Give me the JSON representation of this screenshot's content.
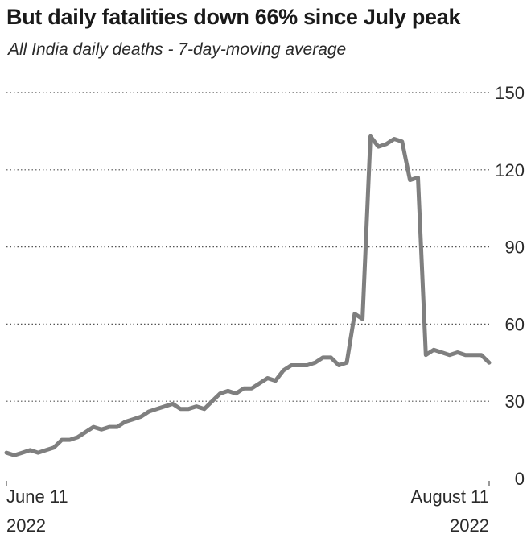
{
  "title": "But daily fatalities down 66% since July peak",
  "subtitle": "All India daily deaths - 7-day-moving average",
  "chart_data": {
    "type": "line",
    "title": "But daily fatalities down 66% since July peak",
    "subtitle": "All India daily deaths - 7-day-moving average",
    "xlabel": "",
    "ylabel": "",
    "ylim": [
      0,
      150
    ],
    "yticks": [
      0,
      30,
      60,
      90,
      120,
      150
    ],
    "grid": true,
    "x_tick_labels": [
      {
        "line1": "June 11",
        "line2": "2022"
      },
      {
        "line1": "August 11",
        "line2": "2022"
      }
    ],
    "series_color": "#7f7f7f",
    "series": [
      {
        "x": [
          "2022-06-11",
          "2022-06-12",
          "2022-06-13",
          "2022-06-14",
          "2022-06-15",
          "2022-06-16",
          "2022-06-17",
          "2022-06-18",
          "2022-06-19",
          "2022-06-20",
          "2022-06-21",
          "2022-06-22",
          "2022-06-23",
          "2022-06-24",
          "2022-06-25",
          "2022-06-26",
          "2022-06-27",
          "2022-06-28",
          "2022-06-29",
          "2022-06-30",
          "2022-07-01",
          "2022-07-02",
          "2022-07-03",
          "2022-07-04",
          "2022-07-05",
          "2022-07-06",
          "2022-07-07",
          "2022-07-08",
          "2022-07-09",
          "2022-07-10",
          "2022-07-11",
          "2022-07-12",
          "2022-07-13",
          "2022-07-14",
          "2022-07-15",
          "2022-07-16",
          "2022-07-17",
          "2022-07-18",
          "2022-07-19",
          "2022-07-20",
          "2022-07-21",
          "2022-07-22",
          "2022-07-23",
          "2022-07-24",
          "2022-07-25",
          "2022-07-26",
          "2022-07-27",
          "2022-07-28",
          "2022-07-29",
          "2022-07-30",
          "2022-07-31",
          "2022-08-01",
          "2022-08-02",
          "2022-08-03",
          "2022-08-04",
          "2022-08-05",
          "2022-08-06",
          "2022-08-07",
          "2022-08-08",
          "2022-08-09",
          "2022-08-10",
          "2022-08-11"
        ],
        "values": [
          10,
          9,
          10,
          11,
          10,
          11,
          12,
          15,
          15,
          16,
          18,
          20,
          19,
          20,
          20,
          22,
          23,
          24,
          26,
          27,
          28,
          29,
          27,
          27,
          28,
          27,
          30,
          33,
          34,
          33,
          35,
          35,
          37,
          39,
          38,
          42,
          44,
          44,
          44,
          45,
          47,
          47,
          44,
          45,
          64,
          62,
          133,
          129,
          130,
          132,
          131,
          116,
          117,
          48,
          50,
          49,
          48,
          49,
          48,
          48,
          48,
          45
        ]
      }
    ]
  }
}
